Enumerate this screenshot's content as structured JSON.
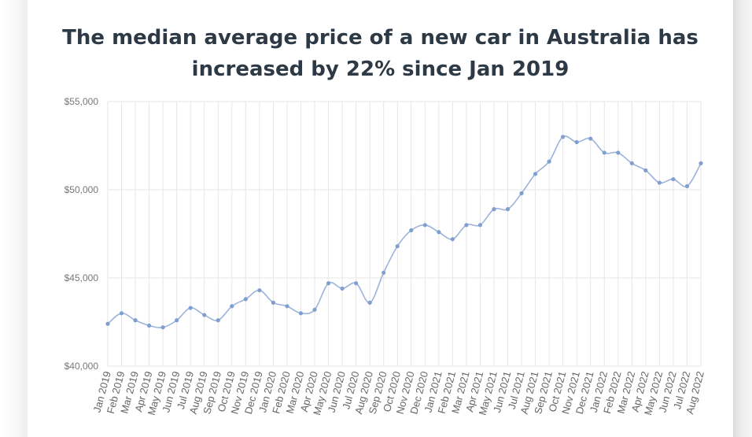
{
  "chart_data": {
    "type": "line",
    "title_line1": "The median average price of a new car in Australia has",
    "title_line2": "increased by 22% since Jan 2019",
    "xlabel": "",
    "ylabel": "",
    "ylim": [
      40000,
      55000
    ],
    "yticks": [
      "$40,000",
      "$45,000",
      "$50,000",
      "$55,000"
    ],
    "ytick_values": [
      40000,
      45000,
      50000,
      55000
    ],
    "grid": true,
    "line_color": "#9db3d9",
    "grid_color": "#e6e6e6",
    "categories": [
      "Jan 2019",
      "Feb 2019",
      "Mar 2019",
      "Apr 2019",
      "May 2019",
      "Jun 2019",
      "Jul 2019",
      "Aug 2019",
      "Sep 2019",
      "Oct 2019",
      "Nov 2019",
      "Dec 2019",
      "Jan 2020",
      "Feb 2020",
      "Mar 2020",
      "Apr 2020",
      "May 2020",
      "Jun 2020",
      "Jul 2020",
      "Aug 2020",
      "Sep 2020",
      "Oct 2020",
      "Nov 2020",
      "Dec 2020",
      "Jan 2021",
      "Feb 2021",
      "Mar 2021",
      "Apr 2021",
      "May 2021",
      "Jun 2021",
      "Jul 2021",
      "Aug 2021",
      "Sep 2021",
      "Oct 2021",
      "Nov 2021",
      "Dec 2021",
      "Jan 2022",
      "Feb 2022",
      "Mar 2022",
      "Apr 2022",
      "May 2022",
      "Jun 2022",
      "Jul 2022",
      "Aug 2022"
    ],
    "values": [
      42400,
      43000,
      42600,
      42300,
      42200,
      42600,
      43300,
      42900,
      42600,
      43400,
      43800,
      44300,
      43600,
      43400,
      43000,
      43200,
      44700,
      44400,
      44700,
      43600,
      45300,
      46800,
      47700,
      48000,
      47600,
      47200,
      48000,
      48000,
      48900,
      48900,
      49800,
      50900,
      51600,
      53000,
      52700,
      52900,
      52100,
      52100,
      51500,
      51100,
      50400,
      50600,
      50200,
      51500
    ]
  }
}
